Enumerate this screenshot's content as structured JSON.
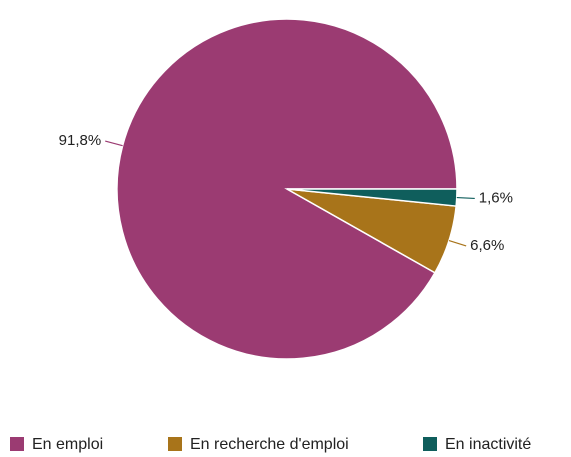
{
  "chart_data": {
    "type": "pie",
    "categories": [
      "En emploi",
      "En recherche d'emploi",
      "En inactivité"
    ],
    "values": [
      91.8,
      6.6,
      1.6
    ],
    "value_labels": [
      "91,8%",
      "6,6%",
      "1,6%"
    ],
    "colors": [
      "#9b3b72",
      "#a8741a",
      "#0f5e5c"
    ],
    "legend": "bottom"
  }
}
